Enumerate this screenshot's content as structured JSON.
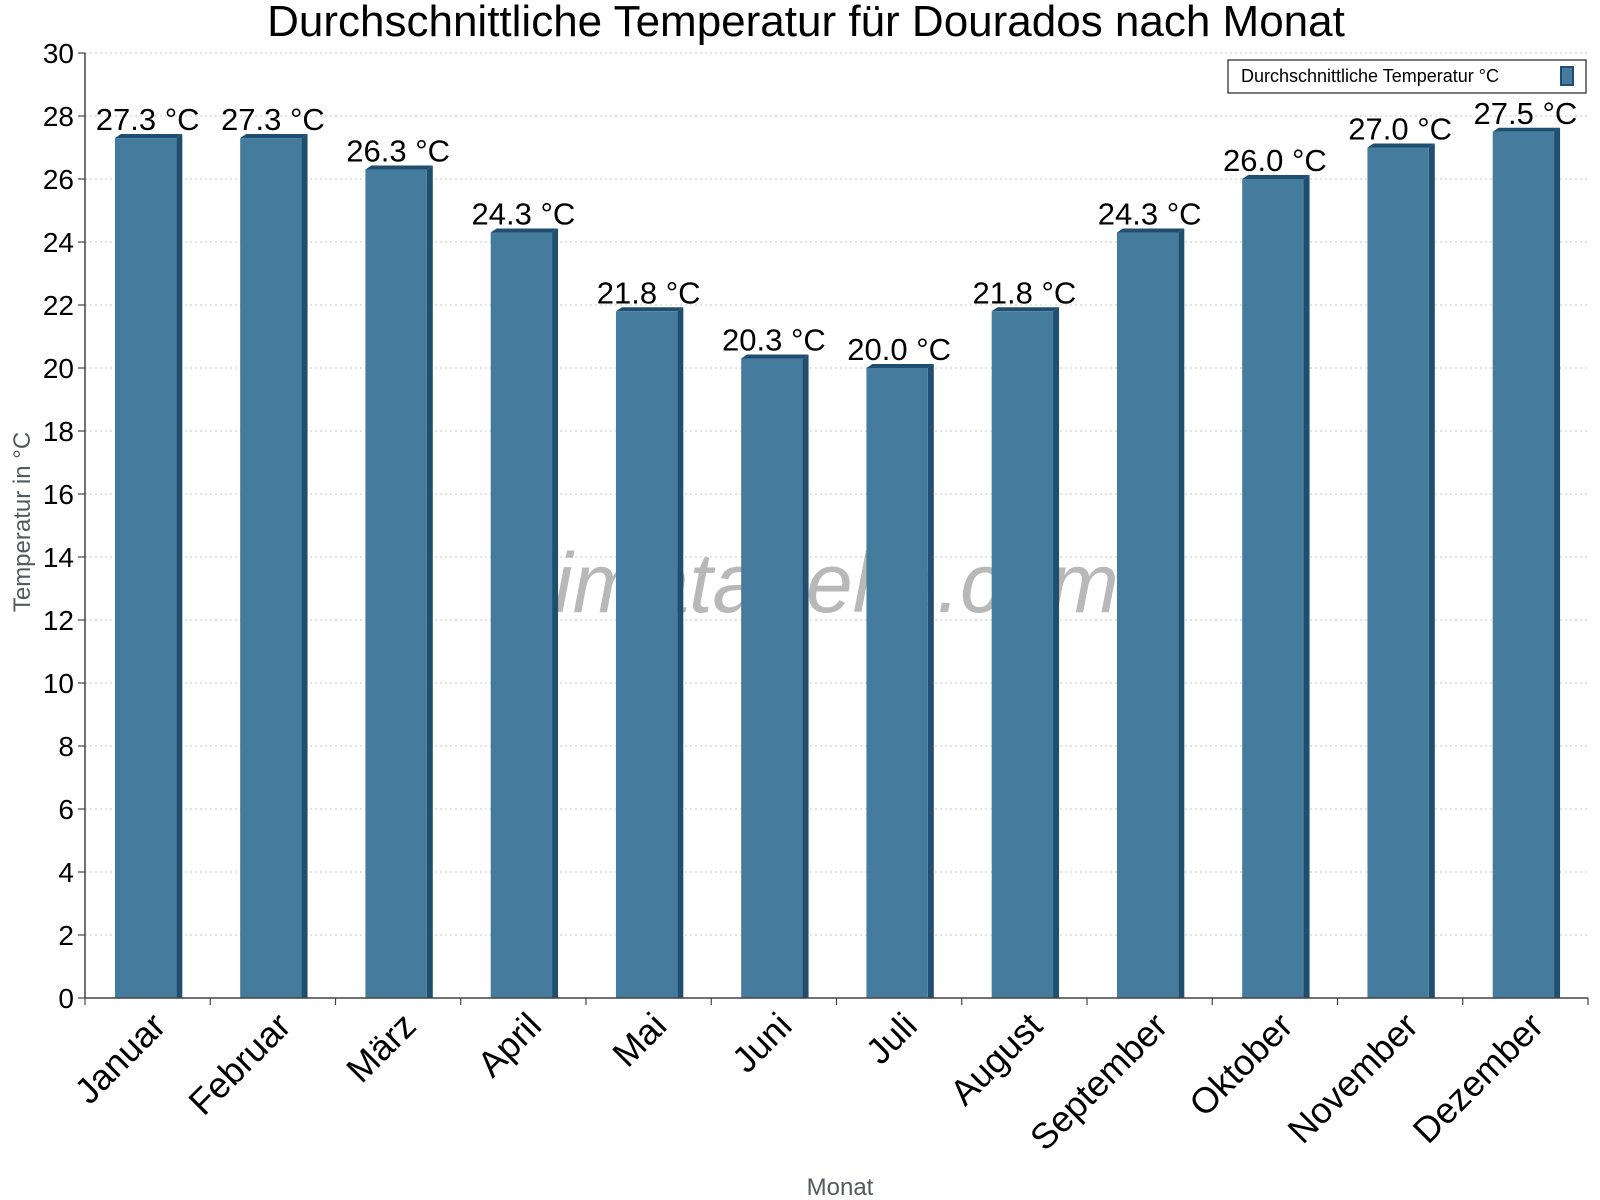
{
  "chart_data": {
    "type": "bar",
    "title": "Durchschnittliche Temperatur für Dourados nach Monat",
    "xlabel": "Monat",
    "ylabel": "Temperatur in °C",
    "categories": [
      "Januar",
      "Februar",
      "März",
      "April",
      "Mai",
      "Juni",
      "Juli",
      "August",
      "September",
      "Oktober",
      "November",
      "Dezember"
    ],
    "series": [
      {
        "name": "Durchschnittliche Temperatur °C",
        "values": [
          27.3,
          27.3,
          26.3,
          24.3,
          21.8,
          20.3,
          20.0,
          21.8,
          24.3,
          26.0,
          27.0,
          27.5
        ],
        "labels": [
          "27.3 °C",
          "27.3 °C",
          "26.3 °C",
          "24.3 °C",
          "21.8 °C",
          "20.3 °C",
          "20.0 °C",
          "21.8 °C",
          "24.3 °C",
          "26.0 °C",
          "27.0 °C",
          "27.5 °C"
        ],
        "color": "#457b9d",
        "side_color": "#1f4e6e"
      }
    ],
    "ylim": [
      0,
      30
    ],
    "yticks": [
      "0",
      "2",
      "4",
      "6",
      "8",
      "10",
      "12",
      "14",
      "16",
      "18",
      "20",
      "22",
      "24",
      "26",
      "28",
      "30"
    ],
    "grid": true,
    "legend_position": "top-right"
  },
  "watermark": "klimatabelle.com"
}
